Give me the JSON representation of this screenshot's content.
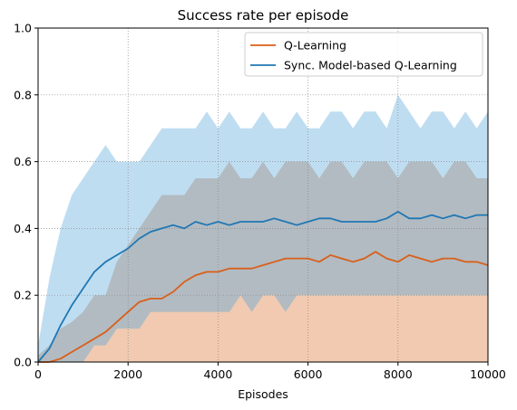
{
  "chart_data": {
    "type": "line",
    "title": "Success rate per episode",
    "xlabel": "Episodes",
    "ylabel": "",
    "xlim": [
      0,
      10000
    ],
    "ylim": [
      0.0,
      1.0
    ],
    "x_ticks": [
      0,
      2000,
      4000,
      6000,
      8000,
      10000
    ],
    "y_ticks": [
      0.0,
      0.2,
      0.4,
      0.6,
      0.8,
      1.0
    ],
    "x_tick_labels": [
      "0",
      "2000",
      "4000",
      "6000",
      "8000",
      "10000"
    ],
    "y_tick_labels": [
      "0.0",
      "0.2",
      "0.4",
      "0.6",
      "0.8",
      "1.0"
    ],
    "grid": true,
    "legend_position": "top-right",
    "x": [
      0,
      250,
      500,
      750,
      1000,
      1250,
      1500,
      1750,
      2000,
      2250,
      2500,
      2750,
      3000,
      3250,
      3500,
      3750,
      4000,
      4250,
      4500,
      4750,
      5000,
      5250,
      5500,
      5750,
      6000,
      6250,
      6500,
      6750,
      7000,
      7250,
      7500,
      7750,
      8000,
      8250,
      8500,
      8750,
      9000,
      9250,
      9500,
      9750,
      10000
    ],
    "series": [
      {
        "name": "Q-Learning",
        "color": "#d95f1a",
        "band_color": "#f0c4a8",
        "values": [
          0.0,
          0.0,
          0.01,
          0.03,
          0.05,
          0.07,
          0.09,
          0.12,
          0.15,
          0.18,
          0.19,
          0.19,
          0.21,
          0.24,
          0.26,
          0.27,
          0.27,
          0.28,
          0.28,
          0.28,
          0.29,
          0.3,
          0.31,
          0.31,
          0.31,
          0.3,
          0.32,
          0.31,
          0.3,
          0.31,
          0.33,
          0.31,
          0.3,
          0.32,
          0.31,
          0.3,
          0.31,
          0.31,
          0.3,
          0.3,
          0.29
        ],
        "band_low": [
          0.0,
          0.0,
          0.0,
          0.0,
          0.0,
          0.0,
          0.0,
          0.0,
          0.0,
          0.0,
          0.0,
          0.0,
          0.0,
          0.0,
          0.0,
          0.0,
          0.0,
          0.0,
          0.0,
          0.0,
          0.0,
          0.0,
          0.0,
          0.0,
          0.0,
          0.0,
          0.0,
          0.0,
          0.0,
          0.0,
          0.0,
          0.0,
          0.0,
          0.0,
          0.0,
          0.0,
          0.0,
          0.0,
          0.0,
          0.0,
          0.0
        ],
        "band_high": [
          0.02,
          0.05,
          0.1,
          0.12,
          0.15,
          0.2,
          0.2,
          0.3,
          0.35,
          0.4,
          0.45,
          0.5,
          0.5,
          0.5,
          0.55,
          0.55,
          0.55,
          0.6,
          0.55,
          0.55,
          0.6,
          0.55,
          0.6,
          0.6,
          0.6,
          0.55,
          0.6,
          0.6,
          0.55,
          0.6,
          0.6,
          0.6,
          0.55,
          0.6,
          0.6,
          0.6,
          0.55,
          0.6,
          0.6,
          0.55,
          0.55
        ]
      },
      {
        "name": "Sync. Model-based Q-Learning",
        "color": "#1f77b4",
        "band_color": "#a9d2ec",
        "values": [
          0.0,
          0.04,
          0.11,
          0.17,
          0.22,
          0.27,
          0.3,
          0.32,
          0.34,
          0.37,
          0.39,
          0.4,
          0.41,
          0.4,
          0.42,
          0.41,
          0.42,
          0.41,
          0.42,
          0.42,
          0.42,
          0.43,
          0.42,
          0.41,
          0.42,
          0.43,
          0.43,
          0.42,
          0.42,
          0.42,
          0.42,
          0.43,
          0.45,
          0.43,
          0.43,
          0.44,
          0.43,
          0.44,
          0.43,
          0.44,
          0.44
        ],
        "band_low": [
          0.0,
          0.0,
          0.0,
          0.0,
          0.0,
          0.05,
          0.05,
          0.1,
          0.1,
          0.1,
          0.15,
          0.15,
          0.15,
          0.15,
          0.15,
          0.15,
          0.15,
          0.15,
          0.2,
          0.15,
          0.2,
          0.2,
          0.15,
          0.2,
          0.2,
          0.2,
          0.2,
          0.2,
          0.2,
          0.2,
          0.2,
          0.2,
          0.2,
          0.2,
          0.2,
          0.2,
          0.2,
          0.2,
          0.2,
          0.2,
          0.2
        ],
        "band_high": [
          0.05,
          0.25,
          0.4,
          0.5,
          0.55,
          0.6,
          0.65,
          0.6,
          0.6,
          0.6,
          0.65,
          0.7,
          0.7,
          0.7,
          0.7,
          0.75,
          0.7,
          0.75,
          0.7,
          0.7,
          0.75,
          0.7,
          0.7,
          0.75,
          0.7,
          0.7,
          0.75,
          0.75,
          0.7,
          0.75,
          0.75,
          0.7,
          0.8,
          0.75,
          0.7,
          0.75,
          0.75,
          0.7,
          0.75,
          0.7,
          0.75
        ]
      }
    ]
  }
}
